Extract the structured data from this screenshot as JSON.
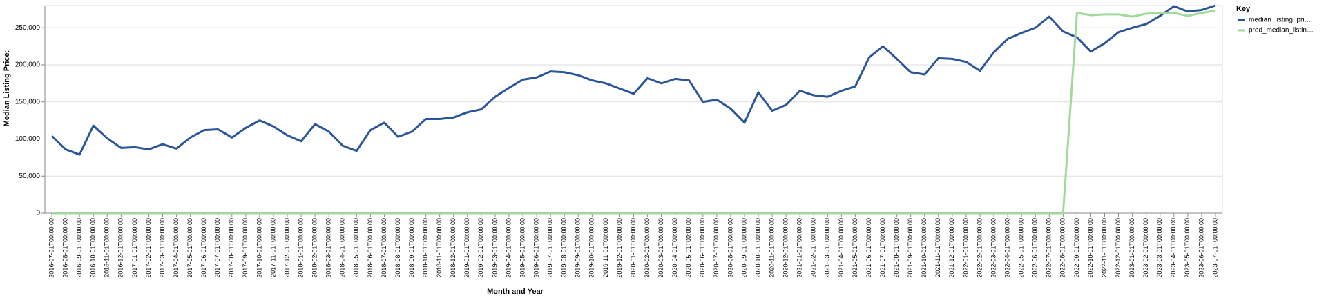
{
  "chart_data": {
    "type": "line",
    "x_label": "Month and Year",
    "y_label": "Median Listing Price:",
    "legend_title": "Key",
    "legend_position": "right",
    "grid": true,
    "categories": [
      "2016-07-01T00:00:00",
      "2016-08-01T00:00:00",
      "2016-09-01T00:00:00",
      "2016-10-01T00:00:00",
      "2016-11-01T00:00:00",
      "2016-12-01T00:00:00",
      "2017-01-01T00:00:00",
      "2017-02-01T00:00:00",
      "2017-03-01T00:00:00",
      "2017-04-01T00:00:00",
      "2017-05-01T00:00:00",
      "2017-06-01T00:00:00",
      "2017-07-01T00:00:00",
      "2017-08-01T00:00:00",
      "2017-09-01T00:00:00",
      "2017-10-01T00:00:00",
      "2017-11-01T00:00:00",
      "2017-12-01T00:00:00",
      "2018-01-01T00:00:00",
      "2018-02-01T00:00:00",
      "2018-03-01T00:00:00",
      "2018-04-01T00:00:00",
      "2018-05-01T00:00:00",
      "2018-06-01T00:00:00",
      "2018-07-01T00:00:00",
      "2018-08-01T00:00:00",
      "2018-09-01T00:00:00",
      "2018-10-01T00:00:00",
      "2018-11-01T00:00:00",
      "2018-12-01T00:00:00",
      "2019-01-01T00:00:00",
      "2019-02-01T00:00:00",
      "2019-03-01T00:00:00",
      "2019-04-01T00:00:00",
      "2019-05-01T00:00:00",
      "2019-06-01T00:00:00",
      "2019-07-01T00:00:00",
      "2019-08-01T00:00:00",
      "2019-09-01T00:00:00",
      "2019-10-01T00:00:00",
      "2019-11-01T00:00:00",
      "2019-12-01T00:00:00",
      "2020-01-01T00:00:00",
      "2020-02-01T00:00:00",
      "2020-03-01T00:00:00",
      "2020-04-01T00:00:00",
      "2020-05-01T00:00:00",
      "2020-06-01T00:00:00",
      "2020-07-01T00:00:00",
      "2020-08-01T00:00:00",
      "2020-09-01T00:00:00",
      "2020-10-01T00:00:00",
      "2020-11-01T00:00:00",
      "2020-12-01T00:00:00",
      "2021-01-01T00:00:00",
      "2021-02-01T00:00:00",
      "2021-03-01T00:00:00",
      "2021-04-01T00:00:00",
      "2021-05-01T00:00:00",
      "2021-06-01T00:00:00",
      "2021-07-01T00:00:00",
      "2021-08-01T00:00:00",
      "2021-09-01T00:00:00",
      "2021-10-01T00:00:00",
      "2021-11-01T00:00:00",
      "2021-12-01T00:00:00",
      "2022-01-01T00:00:00",
      "2022-02-01T00:00:00",
      "2022-03-01T00:00:00",
      "2022-04-01T00:00:00",
      "2022-05-01T00:00:00",
      "2022-06-01T00:00:00",
      "2022-07-01T00:00:00",
      "2022-08-01T00:00:00",
      "2022-09-01T00:00:00",
      "2022-10-01T00:00:00",
      "2022-11-01T00:00:00",
      "2022-12-01T00:00:00",
      "2023-01-01T00:00:00",
      "2023-02-01T00:00:00",
      "2023-03-01T00:00:00",
      "2023-04-01T00:00:00",
      "2023-05-01T00:00:00",
      "2023-06-01T00:00:00",
      "2023-07-01T00:00:00"
    ],
    "series": [
      {
        "name": "median_listing_pri…",
        "color": "#2a5599",
        "values": [
          104000,
          86000,
          79000,
          118000,
          101000,
          88000,
          89000,
          86000,
          93000,
          87000,
          102000,
          112000,
          113000,
          102000,
          115000,
          125000,
          117000,
          105000,
          97000,
          120000,
          110000,
          91000,
          84000,
          112000,
          122000,
          103000,
          110000,
          127000,
          127000,
          129000,
          136000,
          140000,
          157000,
          169000,
          180000,
          183000,
          191000,
          190000,
          186000,
          179000,
          175000,
          168000,
          161000,
          182000,
          175000,
          181000,
          179000,
          150000,
          153000,
          141000,
          122000,
          163000,
          138000,
          146000,
          165000,
          159000,
          157000,
          165000,
          171000,
          210000,
          225000,
          208000,
          190000,
          187000,
          209000,
          208000,
          204000,
          192000,
          217000,
          235000,
          243000,
          250000,
          265000,
          245000,
          237000,
          218000,
          229000,
          244000,
          250000,
          255000,
          266000,
          279000,
          272000,
          274000,
          280000
        ]
      },
      {
        "name": "pred_median_listin…",
        "color": "#a1d99b",
        "values": [
          0,
          0,
          0,
          0,
          0,
          0,
          0,
          0,
          0,
          0,
          0,
          0,
          0,
          0,
          0,
          0,
          0,
          0,
          0,
          0,
          0,
          0,
          0,
          0,
          0,
          0,
          0,
          0,
          0,
          0,
          0,
          0,
          0,
          0,
          0,
          0,
          0,
          0,
          0,
          0,
          0,
          0,
          0,
          0,
          0,
          0,
          0,
          0,
          0,
          0,
          0,
          0,
          0,
          0,
          0,
          0,
          0,
          0,
          0,
          0,
          0,
          0,
          0,
          0,
          0,
          0,
          0,
          0,
          0,
          0,
          0,
          0,
          0,
          0,
          270000,
          267000,
          268000,
          268000,
          265000,
          269000,
          270000,
          270000,
          266000,
          270000,
          273000
        ]
      }
    ],
    "ylim": [
      0,
      280000
    ],
    "yticks": [
      0,
      {
        "value": 50000,
        "label": "50,000"
      },
      {
        "value": 100000,
        "label": "100,000"
      },
      {
        "value": 150000,
        "label": "150,000"
      },
      {
        "value": 200000,
        "label": "200,000"
      },
      {
        "value": 250000,
        "label": "250,000"
      }
    ]
  }
}
